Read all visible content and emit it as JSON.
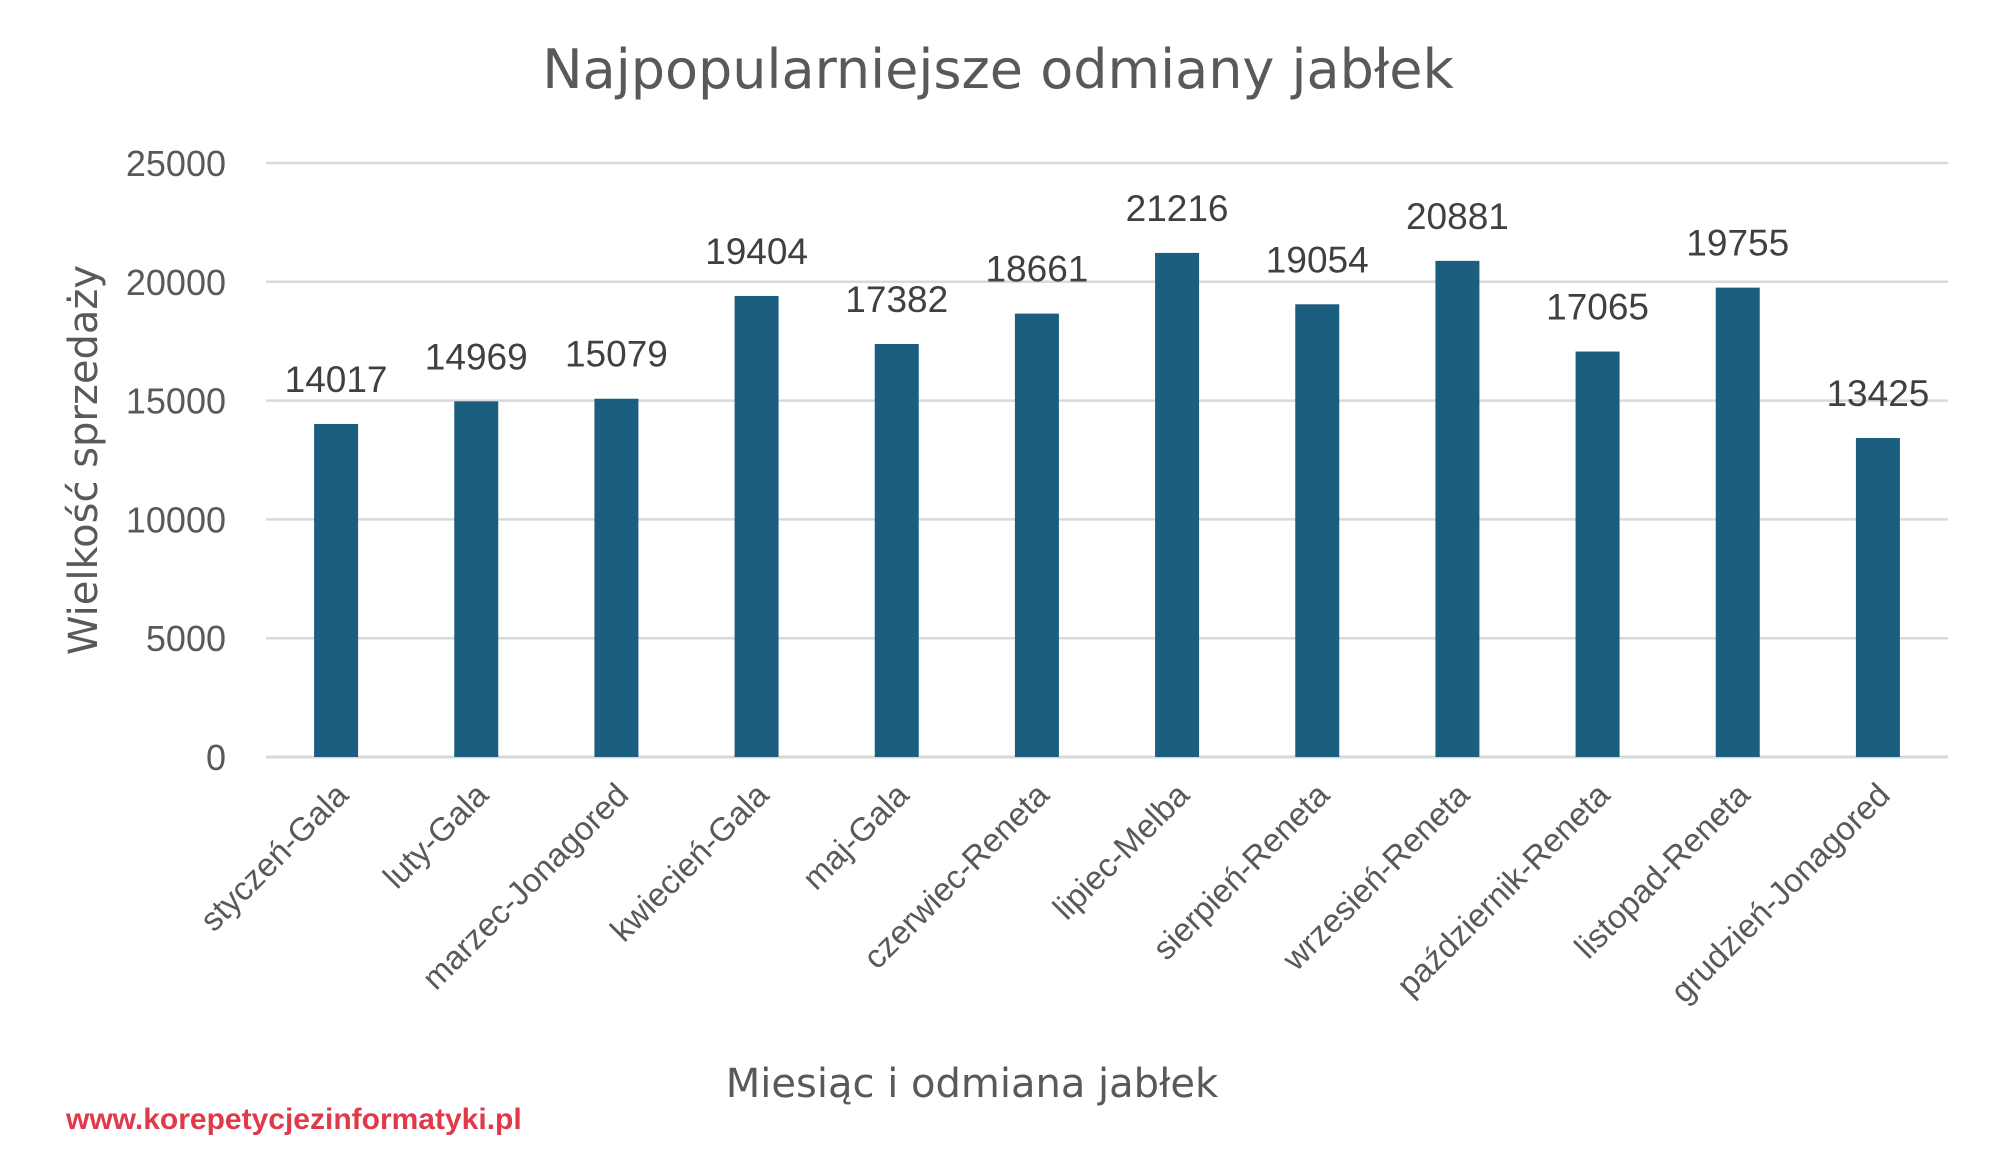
{
  "chart_data": {
    "type": "bar",
    "title": "Najpopularniejsze odmiany jabłek",
    "xlabel": "Miesiąc i odmiana jabłek",
    "ylabel": "Wielkość sprzedaży",
    "categories": [
      "styczeń-Gala",
      "luty-Gala",
      "marzec-Jonagored",
      "kwiecień-Gala",
      "maj-Gala",
      "czerwiec-Reneta",
      "lipiec-Melba",
      "sierpień-Reneta",
      "wrzesień-Reneta",
      "październik-Reneta",
      "listopad-Reneta",
      "grudzień-Jonagored"
    ],
    "values": [
      14017,
      14969,
      15079,
      19404,
      17382,
      18661,
      21216,
      19054,
      20881,
      17065,
      19755,
      13425
    ],
    "ylim": [
      0,
      25000
    ],
    "yticks": [
      0,
      5000,
      10000,
      15000,
      20000,
      25000
    ],
    "grid": true,
    "data_labels": true,
    "bar_color": "#1b5e80",
    "grid_color": "#d9d9d9"
  },
  "watermark": "www.korepetycjezinformatyki.pl"
}
